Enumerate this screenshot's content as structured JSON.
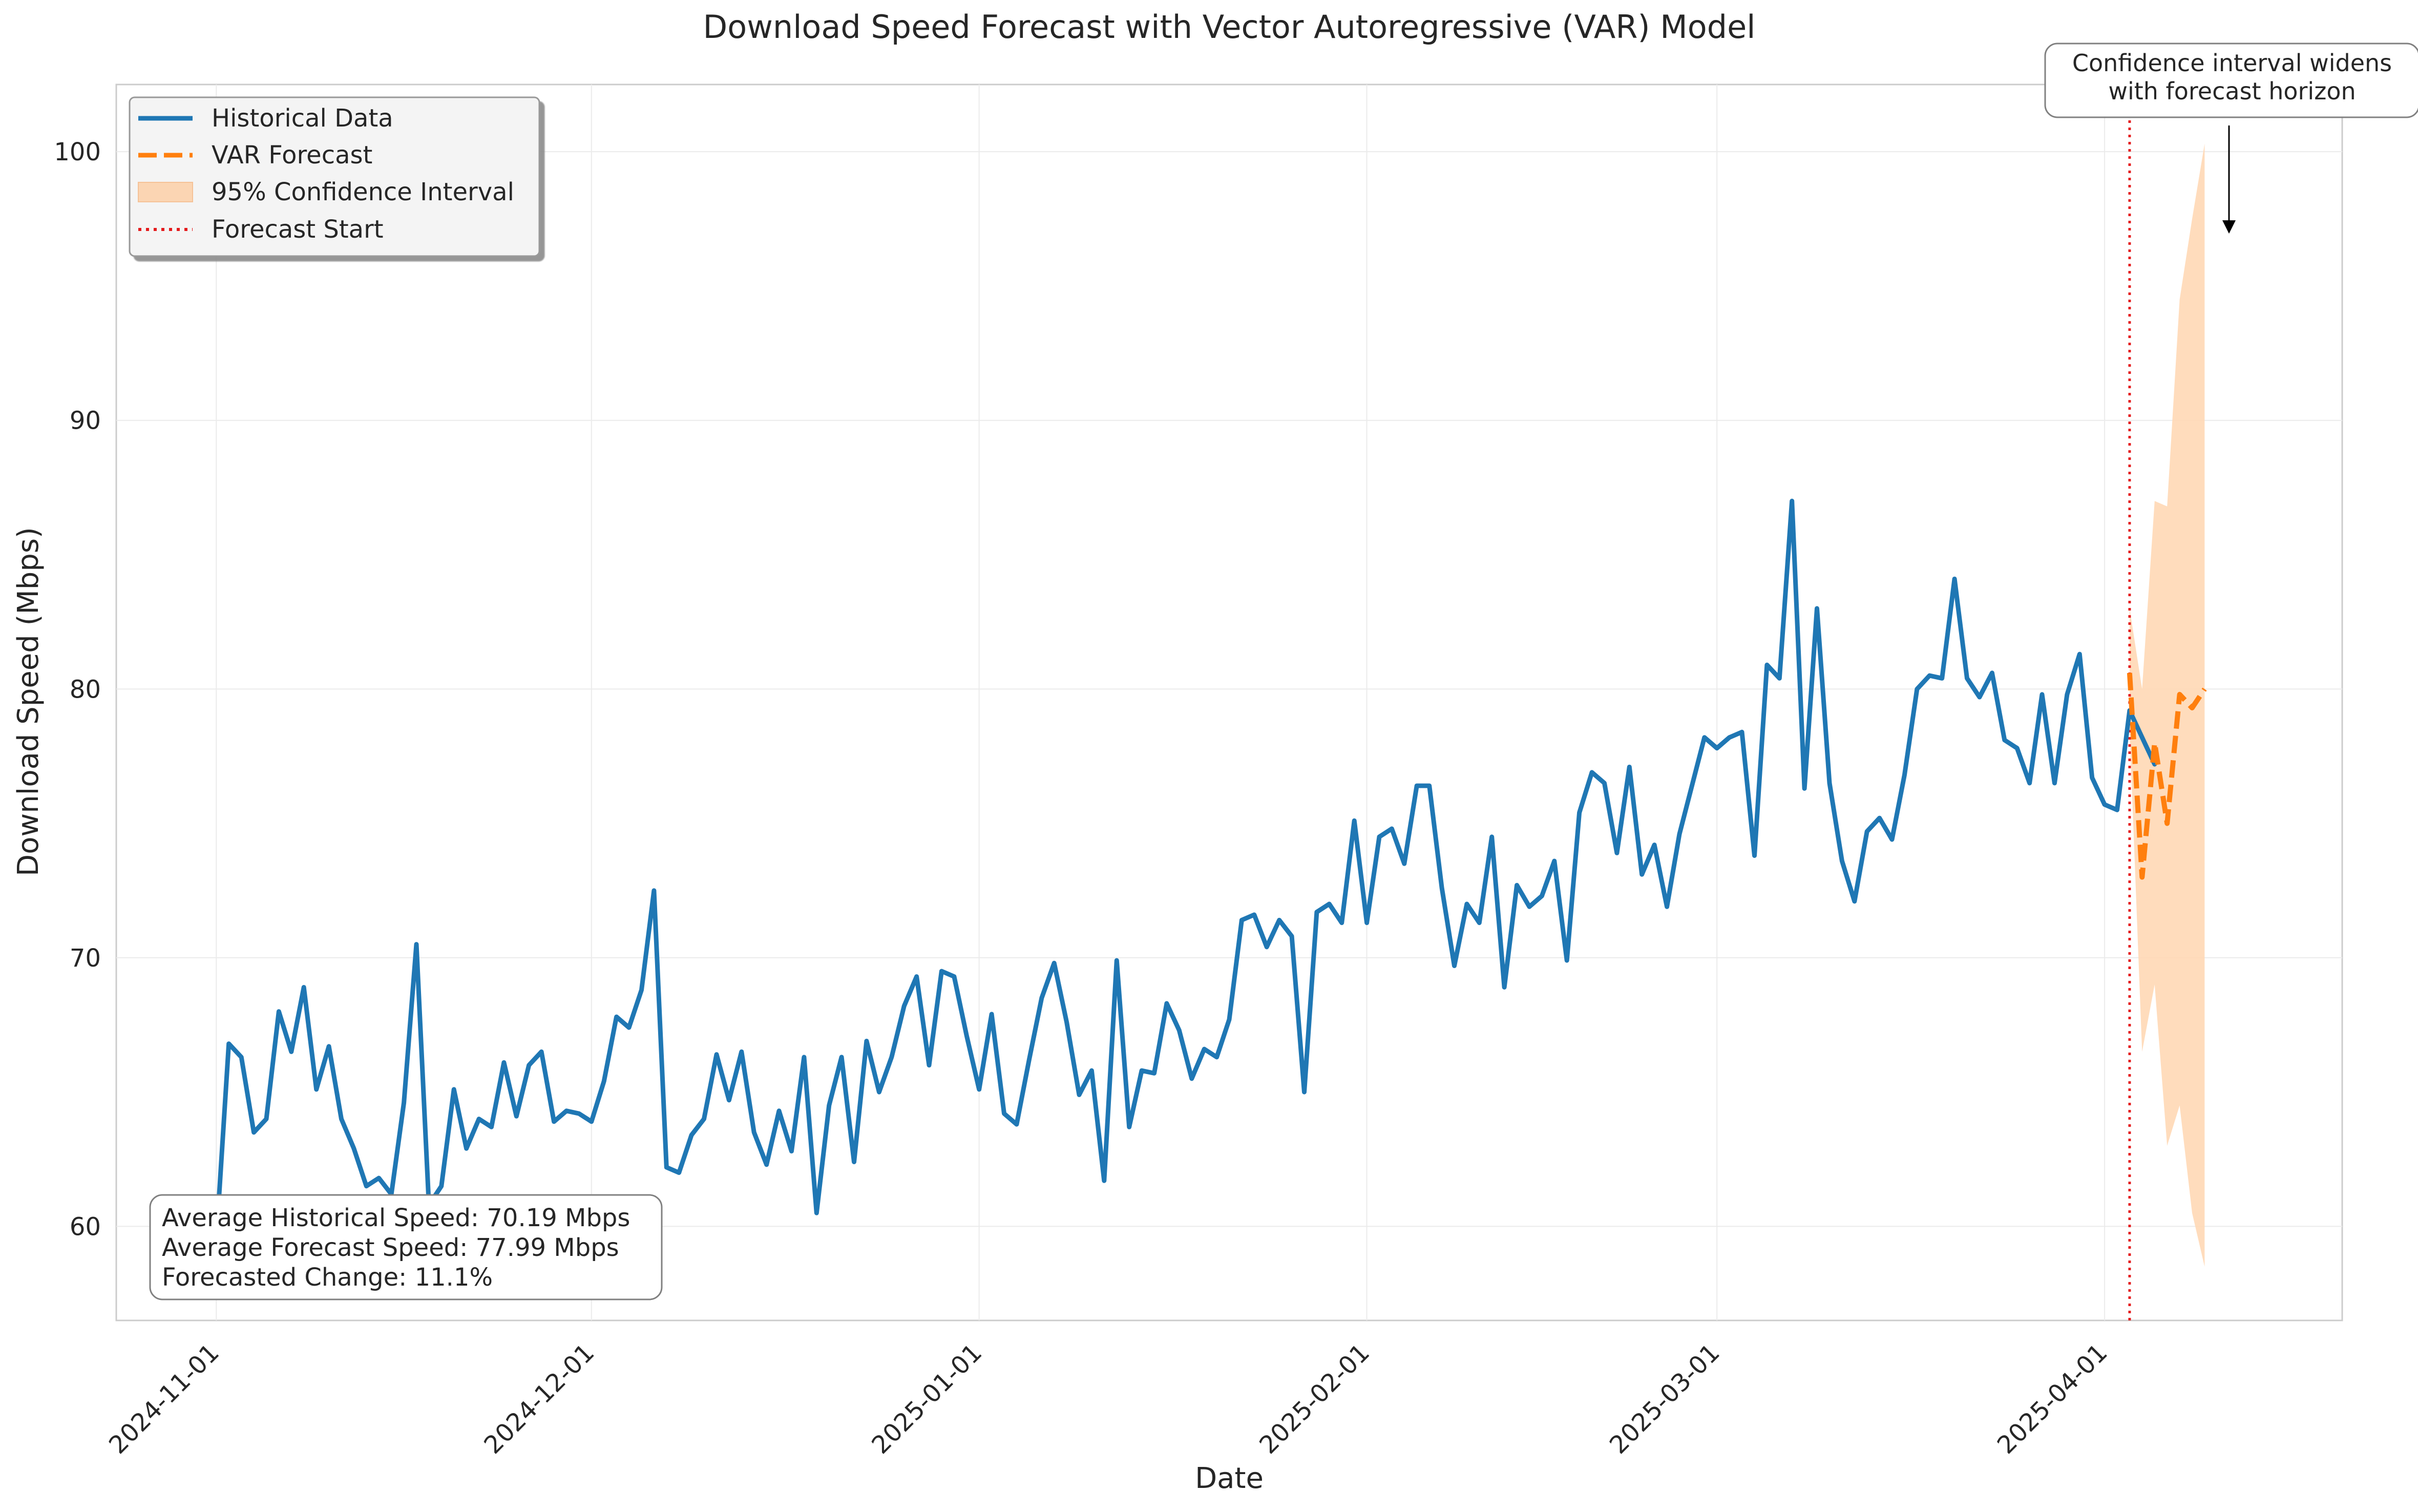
{
  "chart_data": {
    "type": "line",
    "title": "Download Speed Forecast with Vector Autoregressive (VAR) Model",
    "xlabel": "Date",
    "ylabel": "Download Speed (Mbps)",
    "xlim": [
      "2024-10-24",
      "2025-04-20"
    ],
    "ylim": [
      56.5,
      102.5
    ],
    "yticks": [
      60,
      70,
      80,
      90,
      100
    ],
    "xticks": [
      "2024-11-01",
      "2024-12-01",
      "2025-01-01",
      "2025-02-01",
      "2025-03-01",
      "2025-04-01"
    ],
    "grid": true,
    "legend_position": "top-left",
    "legend": {
      "historical": "Historical Data",
      "forecast": "VAR Forecast",
      "ci": "95% Confidence Interval",
      "start": "Forecast Start"
    },
    "colors": {
      "historical": "#1f77b4",
      "forecast": "#ff7f0e",
      "ci": "#ffd8b5",
      "start": "#e41a1c",
      "grid": "#ebebeb"
    },
    "historical": {
      "start_date": "2024-11-01",
      "values": [
        59.5,
        66.8,
        66.3,
        63.5,
        64.0,
        68.0,
        66.5,
        68.9,
        65.1,
        66.7,
        64.0,
        62.9,
        61.5,
        61.8,
        61.2,
        64.6,
        70.5,
        60.8,
        61.5,
        65.1,
        62.9,
        64.0,
        63.7,
        66.1,
        64.1,
        66.0,
        66.5,
        63.9,
        64.3,
        64.2,
        63.9,
        65.4,
        67.8,
        67.4,
        68.8,
        72.5,
        62.2,
        62.0,
        63.4,
        64.0,
        66.4,
        64.7,
        66.5,
        63.5,
        62.3,
        64.3,
        62.8,
        66.3,
        60.5,
        64.5,
        66.3,
        62.4,
        66.9,
        65.0,
        66.3,
        68.2,
        69.3,
        66.0,
        69.5,
        69.3,
        67.1,
        65.1,
        67.9,
        64.2,
        63.8,
        66.2,
        68.5,
        69.8,
        67.6,
        64.9,
        65.8,
        61.7,
        69.9,
        63.7,
        65.8,
        65.7,
        68.3,
        67.3,
        65.5,
        66.6,
        66.3,
        67.7,
        71.4,
        71.6,
        70.4,
        71.4,
        70.8,
        65.0,
        71.7,
        72.0,
        71.3,
        75.1,
        71.3,
        74.5,
        74.8,
        73.5,
        76.4,
        76.4,
        72.6,
        69.7,
        72.0,
        71.3,
        74.5,
        68.9,
        72.7,
        71.9,
        72.3,
        73.6,
        69.9,
        75.4,
        76.9,
        76.5,
        73.9,
        77.1,
        73.1,
        74.2,
        71.9,
        74.6,
        76.4,
        78.2,
        77.8,
        78.2,
        78.4,
        73.8,
        80.9,
        80.4,
        87.0,
        76.3,
        83.0,
        76.5,
        73.6,
        72.1,
        74.7,
        75.2,
        74.4,
        76.8,
        80.0,
        80.5,
        80.4,
        84.1,
        80.4,
        79.7,
        80.6,
        78.1,
        77.8,
        76.5,
        79.8,
        76.5,
        79.8,
        81.3,
        76.7,
        75.7,
        75.5,
        79.2,
        78.2,
        77.2
      ]
    },
    "forecast_start": "2025-04-03",
    "forecast": {
      "start_date": "2025-04-03",
      "values": [
        80.6,
        73.0,
        78.0,
        75.0,
        79.8,
        79.3,
        80.0
      ],
      "ci_lower": [
        78.5,
        66.5,
        69.0,
        63.0,
        64.5,
        60.5,
        58.5
      ],
      "ci_upper": [
        83.0,
        80.0,
        87.0,
        86.8,
        94.5,
        97.5,
        100.3
      ]
    },
    "annotation": {
      "text": [
        "Confidence interval widens",
        "with forecast horizon"
      ],
      "arrow_target": {
        "date": "2025-04-08",
        "value": 97.0
      }
    },
    "stats_box": [
      "Average Historical Speed: 70.19 Mbps",
      "Average Forecast Speed: 77.99 Mbps",
      "Forecasted Change: 11.1%"
    ]
  }
}
